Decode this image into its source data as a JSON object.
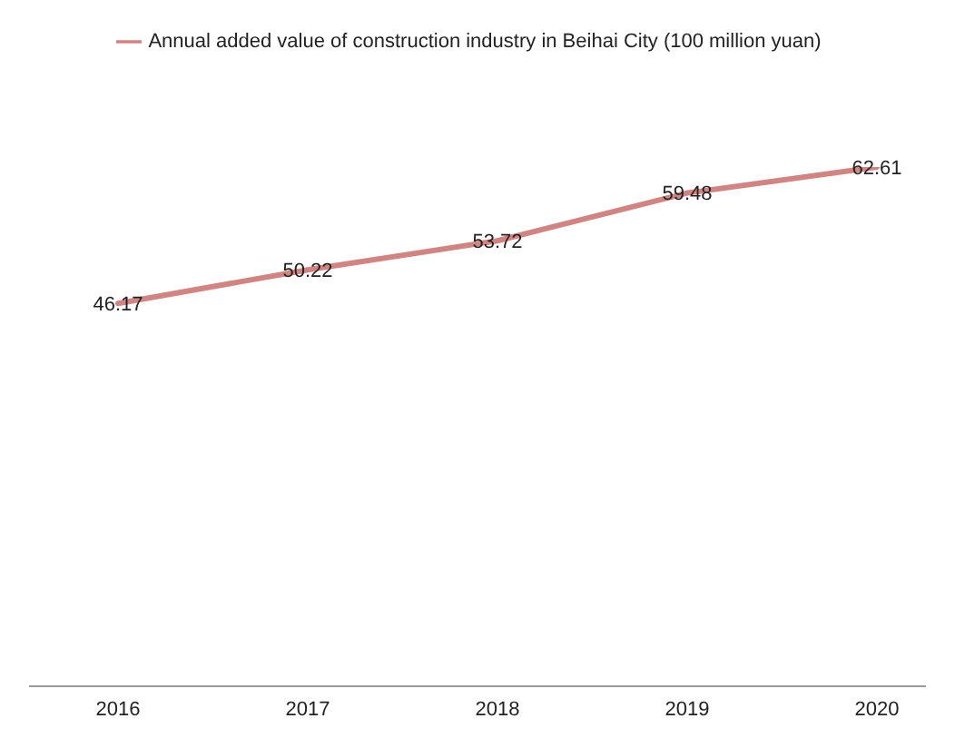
{
  "chart_data": {
    "type": "line",
    "categories": [
      "2016",
      "2017",
      "2018",
      "2019",
      "2020"
    ],
    "series": [
      {
        "name": "Annual added value of construction industry in Beihai City (100 million yuan)",
        "color": "#d08583",
        "values": [
          46.17,
          50.22,
          53.72,
          59.48,
          62.61
        ]
      }
    ],
    "data_labels": true,
    "legend": "top",
    "marker": "none"
  }
}
